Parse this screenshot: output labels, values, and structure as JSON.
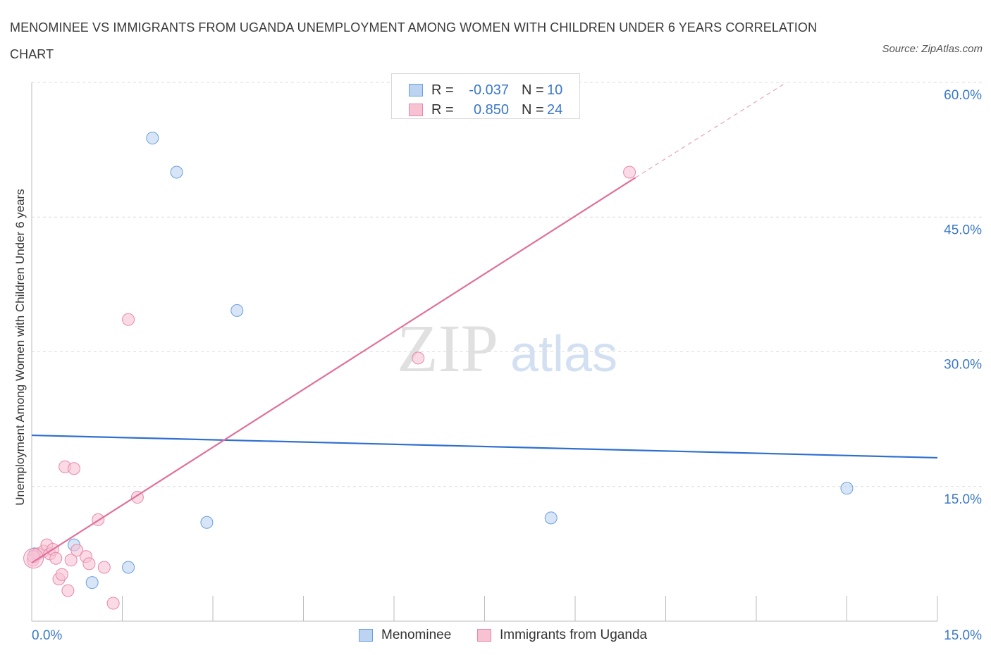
{
  "title": "MENOMINEE VS IMMIGRANTS FROM UGANDA UNEMPLOYMENT AMONG WOMEN WITH CHILDREN UNDER 6 YEARS CORRELATION CHART",
  "source": "Source: ZipAtlas.com",
  "watermark": {
    "zip": "ZIP",
    "atlas": "atlas"
  },
  "legend": {
    "rows": [
      {
        "r_label": "R =",
        "r_value": "-0.037",
        "n_label": "N =",
        "n_value": "10"
      },
      {
        "r_label": "R =",
        "r_value": "0.850",
        "n_label": "N =",
        "n_value": "24"
      }
    ]
  },
  "chart_data": {
    "type": "scatter",
    "title": "MENOMINEE VS IMMIGRANTS FROM UGANDA UNEMPLOYMENT AMONG WOMEN WITH CHILDREN UNDER 6 YEARS CORRELATION CHART",
    "xlabel": "",
    "ylabel": "Unemployment Among Women with Children Under 6 years",
    "xlim": [
      0,
      15
    ],
    "ylim": [
      0,
      60
    ],
    "x_tick_labels": [
      "0.0%",
      "15.0%"
    ],
    "y_ticks": [
      15,
      30,
      45,
      60
    ],
    "y_tick_labels": [
      "15.0%",
      "30.0%",
      "45.0%",
      "60.0%"
    ],
    "grid": true,
    "legend_position": "bottom",
    "series": [
      {
        "name": "Menominee",
        "color": "#6a9fde",
        "fill": "#bcd4f2",
        "r": -0.037,
        "n": 10,
        "points": [
          [
            0.05,
            7.5
          ],
          [
            0.7,
            8.5
          ],
          [
            1.0,
            4.3
          ],
          [
            1.6,
            6.0
          ],
          [
            2.0,
            53.8
          ],
          [
            2.4,
            50.0
          ],
          [
            2.9,
            11.0
          ],
          [
            3.4,
            34.6
          ],
          [
            8.6,
            11.5
          ],
          [
            13.5,
            14.8
          ]
        ],
        "trend": {
          "x": [
            0,
            15
          ],
          "y": [
            20.7,
            18.2
          ],
          "color": "#2f6fcf"
        }
      },
      {
        "name": "Immigrants from Uganda",
        "color": "#e889a8",
        "fill": "#f7c3d3",
        "r": 0.85,
        "n": 24,
        "points": [
          [
            0.02,
            6.8
          ],
          [
            0.1,
            7.5
          ],
          [
            0.2,
            7.8
          ],
          [
            0.25,
            8.5
          ],
          [
            0.3,
            7.5
          ],
          [
            0.35,
            8.0
          ],
          [
            0.4,
            7.0
          ],
          [
            0.45,
            4.7
          ],
          [
            0.5,
            5.2
          ],
          [
            0.55,
            17.2
          ],
          [
            0.6,
            3.4
          ],
          [
            0.65,
            6.8
          ],
          [
            0.7,
            17.0
          ],
          [
            0.75,
            7.9
          ],
          [
            0.9,
            7.2
          ],
          [
            0.95,
            6.4
          ],
          [
            1.1,
            11.3
          ],
          [
            1.2,
            6.0
          ],
          [
            1.35,
            2.0
          ],
          [
            1.6,
            33.6
          ],
          [
            1.75,
            13.8
          ],
          [
            6.4,
            29.3
          ],
          [
            9.9,
            50.0
          ],
          [
            0.03,
            7.2
          ]
        ],
        "trend": {
          "x": [
            0,
            10.0
          ],
          "y": [
            6.5,
            49.4
          ],
          "dashed_to": [
            12.5,
            60.0
          ],
          "color": "#e0709a"
        }
      }
    ]
  }
}
